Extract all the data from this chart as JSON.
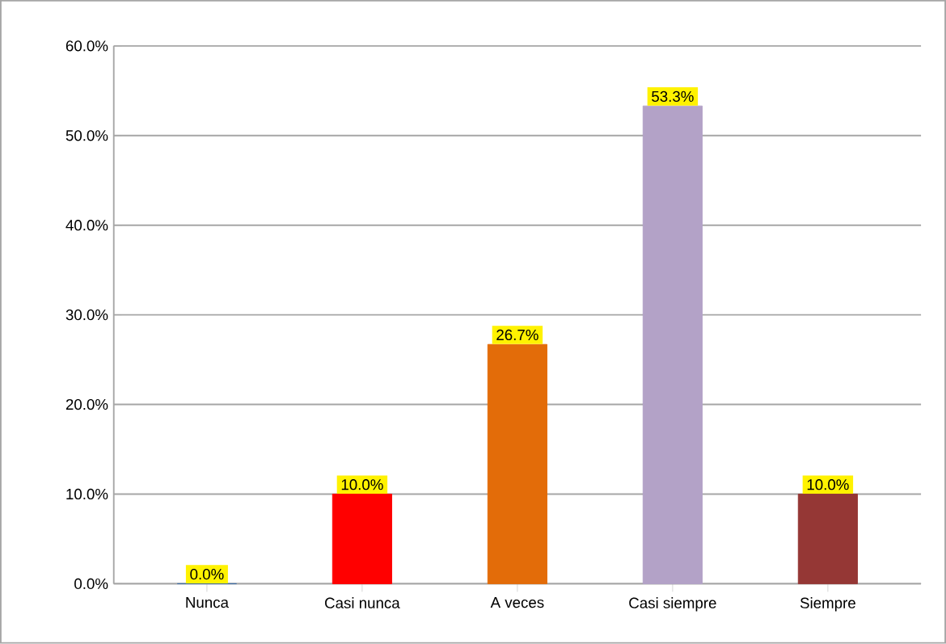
{
  "chart_data": {
    "type": "bar",
    "categories": [
      "Nunca",
      "Casi nunca",
      "A veces",
      "Casi siempre",
      "Siempre"
    ],
    "values": [
      0,
      10,
      26.7,
      53.3,
      10
    ],
    "colors": [
      "#3e6fa8",
      "#ff0000",
      "#e36c09",
      "#b3a2c7",
      "#953735"
    ],
    "value_labels": [
      "0.0%",
      "10.0%",
      "26.7%",
      "53.3%",
      "10.0%"
    ],
    "ylim": [
      0,
      60
    ],
    "yticks": [
      {
        "value": 0,
        "label": "0.0%"
      },
      {
        "value": 10,
        "label": "10.0%"
      },
      {
        "value": 20,
        "label": "20.0%"
      },
      {
        "value": 30,
        "label": "30.0%"
      },
      {
        "value": 40,
        "label": "40.0%"
      },
      {
        "value": 50,
        "label": "50.0%"
      },
      {
        "value": 60,
        "label": "60.0%"
      }
    ],
    "grid": "y"
  }
}
